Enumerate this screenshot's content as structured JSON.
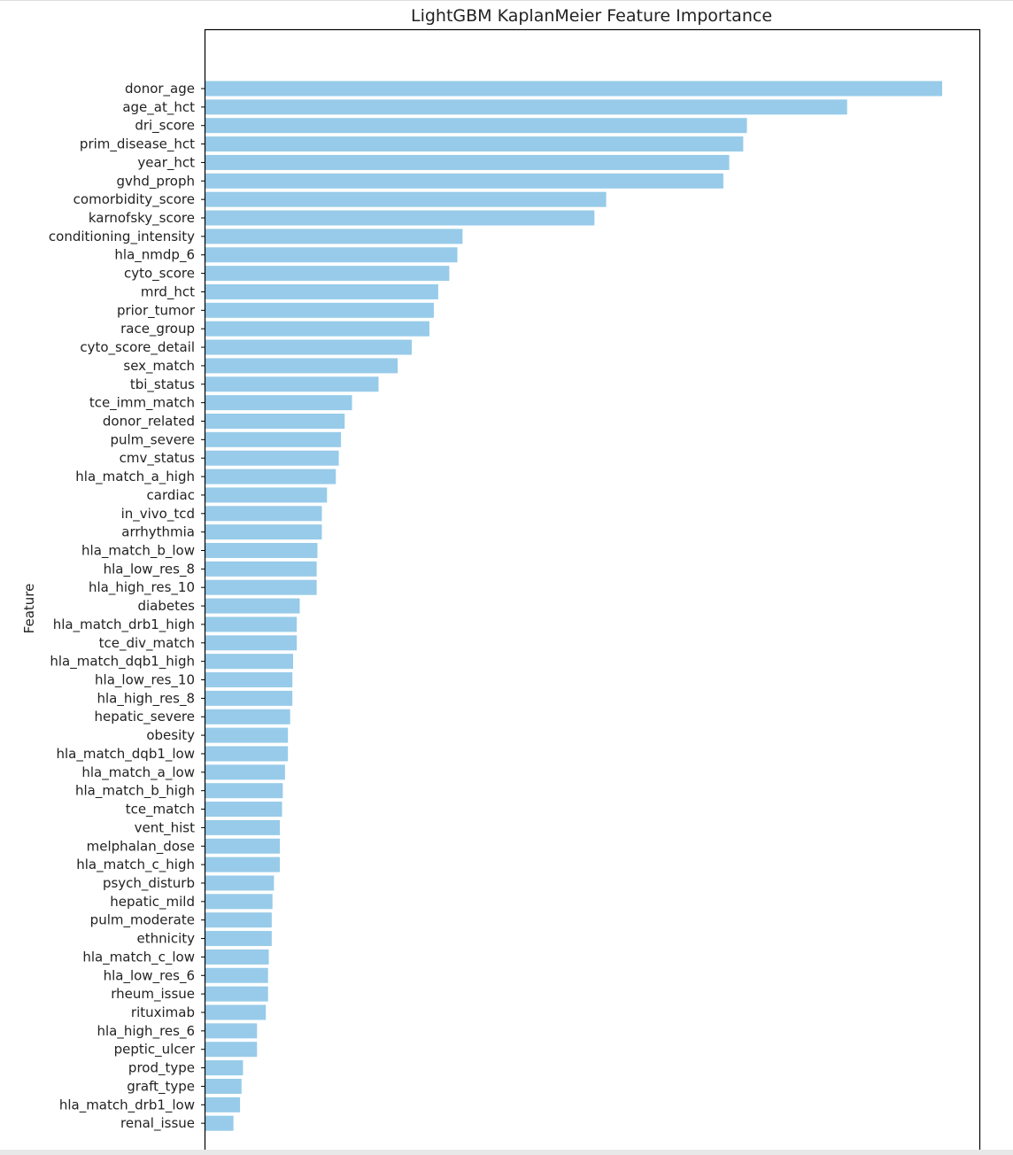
{
  "chart_data": {
    "type": "bar",
    "orientation": "horizontal",
    "title": "LightGBM KaplanMeier Feature Importance",
    "xlabel": "",
    "ylabel": "Feature",
    "bar_color": "#97cbe9",
    "xlim": [
      0,
      1050
    ],
    "categories": [
      "donor_age",
      "age_at_hct",
      "dri_score",
      "prim_disease_hct",
      "year_hct",
      "gvhd_proph",
      "comorbidity_score",
      "karnofsky_score",
      "conditioning_intensity",
      "hla_nmdp_6",
      "cyto_score",
      "mrd_hct",
      "prior_tumor",
      "race_group",
      "cyto_score_detail",
      "sex_match",
      "tbi_status",
      "tce_imm_match",
      "donor_related",
      "pulm_severe",
      "cmv_status",
      "hla_match_a_high",
      "cardiac",
      "in_vivo_tcd",
      "arrhythmia",
      "hla_match_b_low",
      "hla_low_res_8",
      "hla_high_res_10",
      "diabetes",
      "hla_match_drb1_high",
      "tce_div_match",
      "hla_match_dqb1_high",
      "hla_low_res_10",
      "hla_high_res_8",
      "hepatic_severe",
      "obesity",
      "hla_match_dqb1_low",
      "hla_match_a_low",
      "hla_match_b_high",
      "tce_match",
      "vent_hist",
      "melphalan_dose",
      "hla_match_c_high",
      "psych_disturb",
      "hepatic_mild",
      "pulm_moderate",
      "ethnicity",
      "hla_match_c_low",
      "hla_low_res_6",
      "rheum_issue",
      "rituximab",
      "hla_high_res_6",
      "peptic_ulcer",
      "prod_type",
      "graft_type",
      "hla_match_drb1_low",
      "renal_issue"
    ],
    "values": [
      1000,
      871,
      735,
      730,
      711,
      703,
      544,
      528,
      349,
      342,
      331,
      316,
      310,
      304,
      280,
      261,
      235,
      199,
      189,
      184,
      181,
      177,
      165,
      158,
      158,
      152,
      151,
      151,
      128,
      124,
      124,
      119,
      118,
      118,
      115,
      112,
      112,
      108,
      105,
      104,
      101,
      101,
      101,
      93,
      91,
      90,
      90,
      86,
      85,
      85,
      82,
      70,
      70,
      51,
      49,
      47,
      38
    ]
  }
}
